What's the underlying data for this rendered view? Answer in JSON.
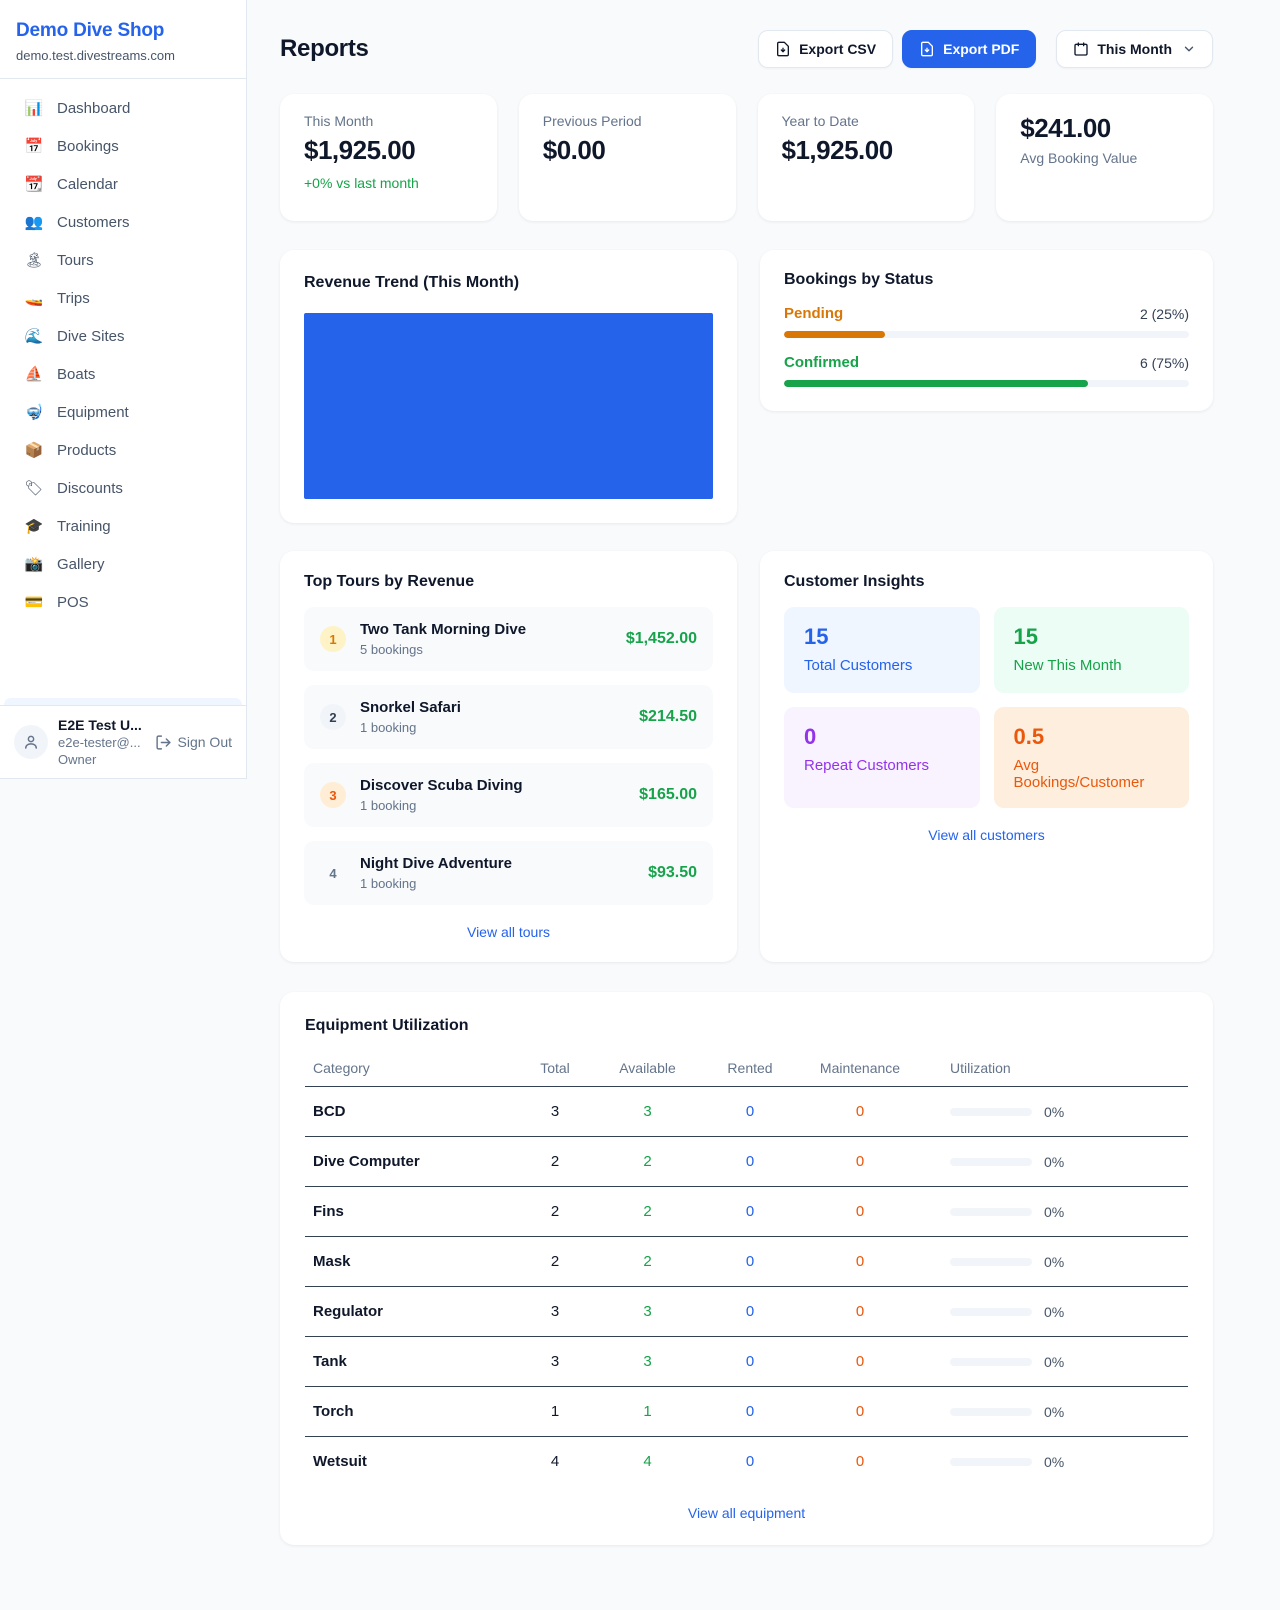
{
  "app": {
    "accent_color": "#2563eb",
    "page_bg": "#f8fafc"
  },
  "sidebar": {
    "shop_name": "Demo Dive Shop",
    "shop_domain": "demo.test.divestreams.com",
    "items": [
      {
        "nav_name": "sidebar-item-dashboard",
        "icon": "📊",
        "icon_name": "bar-chart-icon",
        "label": "Dashboard"
      },
      {
        "nav_name": "sidebar-item-bookings",
        "icon": "📅",
        "icon_name": "calendar-date-icon",
        "label": "Bookings"
      },
      {
        "nav_name": "sidebar-item-calendar",
        "icon": "📆",
        "icon_name": "tear-off-calendar-icon",
        "label": "Calendar"
      },
      {
        "nav_name": "sidebar-item-customers",
        "icon": "👥",
        "icon_name": "people-icon",
        "label": "Customers"
      },
      {
        "nav_name": "sidebar-item-tours",
        "icon": "🏝",
        "icon_name": "island-icon",
        "label": "Tours"
      },
      {
        "nav_name": "sidebar-item-trips",
        "icon": "🚤",
        "icon_name": "speedboat-icon",
        "label": "Trips"
      },
      {
        "nav_name": "sidebar-item-dive-sites",
        "icon": "🌊",
        "icon_name": "wave-icon",
        "label": "Dive Sites"
      },
      {
        "nav_name": "sidebar-item-boats",
        "icon": "⛵",
        "icon_name": "sailboat-icon",
        "label": "Boats"
      },
      {
        "nav_name": "sidebar-item-equipment",
        "icon": "🤿",
        "icon_name": "diving-mask-icon",
        "label": "Equipment"
      },
      {
        "nav_name": "sidebar-item-products",
        "icon": "📦",
        "icon_name": "package-icon",
        "label": "Products"
      },
      {
        "nav_name": "sidebar-item-discounts",
        "icon": "🏷",
        "icon_name": "tag-icon",
        "label": "Discounts"
      },
      {
        "nav_name": "sidebar-item-training",
        "icon": "🎓",
        "icon_name": "graduation-cap-icon",
        "label": "Training"
      },
      {
        "nav_name": "sidebar-item-gallery",
        "icon": "📸",
        "icon_name": "camera-icon",
        "label": "Gallery"
      },
      {
        "nav_name": "sidebar-item-pos",
        "icon": "💳",
        "icon_name": "credit-card-icon",
        "label": "POS"
      }
    ],
    "user": {
      "name": "E2E Test U...",
      "email": "e2e-tester@...",
      "role": "Owner",
      "sign_out_label": "Sign Out"
    }
  },
  "header": {
    "title": "Reports",
    "export_csv_label": "Export CSV",
    "export_pdf_label": "Export PDF",
    "period_label": "This Month"
  },
  "stats": [
    {
      "label": "This Month",
      "value": "$1,925.00",
      "delta": "+0% vs last month"
    },
    {
      "label": "Previous Period",
      "value": "$0.00"
    },
    {
      "label": "Year to Date",
      "value": "$1,925.00"
    },
    {
      "label": "Avg Booking Value",
      "value": "$241.00",
      "tone": "flip"
    }
  ],
  "revenue_trend": {
    "title": "Revenue Trend (This Month)",
    "fill_color": "#2563eb"
  },
  "bookings_by_status": {
    "title": "Bookings by Status",
    "rows": [
      {
        "label": "Pending",
        "count_label": "2 (25%)",
        "pct": 25,
        "tone": "amber",
        "color": "#d97706"
      },
      {
        "label": "Confirmed",
        "count_label": "6 (75%)",
        "pct": 75,
        "tone": "green",
        "color": "#16a34a"
      }
    ]
  },
  "top_tours": {
    "title": "Top Tours by Revenue",
    "view_all_label": "View all tours",
    "items": [
      {
        "rank": "1",
        "tone": "gold",
        "name": "Two Tank Morning Dive",
        "bookings_label": "5 bookings",
        "revenue": "$1,452.00"
      },
      {
        "rank": "2",
        "tone": "silver",
        "name": "Snorkel Safari",
        "bookings_label": "1 booking",
        "revenue": "$214.50"
      },
      {
        "rank": "3",
        "tone": "bronze",
        "name": "Discover Scuba Diving",
        "bookings_label": "1 booking",
        "revenue": "$165.00"
      },
      {
        "rank": "4",
        "tone": "none",
        "name": "Night Dive Adventure",
        "bookings_label": "1 booking",
        "revenue": "$93.50"
      }
    ]
  },
  "customer_insights": {
    "title": "Customer Insights",
    "view_all_label": "View all customers",
    "cells": [
      {
        "value": "15",
        "label": "Total Customers",
        "tone": "blue",
        "color": "#2563eb"
      },
      {
        "value": "15",
        "label": "New This Month",
        "tone": "green",
        "color": "#16a34a"
      },
      {
        "value": "0",
        "label": "Repeat Customers",
        "tone": "purple",
        "color": "#9333ea"
      },
      {
        "value": "0.5",
        "label": "Avg Bookings/Customer",
        "tone": "orange",
        "color": "#ea580c"
      }
    ]
  },
  "equipment": {
    "title": "Equipment Utilization",
    "view_all_label": "View all equipment",
    "columns": [
      "Category",
      "Total",
      "Available",
      "Rented",
      "Maintenance",
      "Utilization"
    ],
    "rows": [
      {
        "category": "BCD",
        "total": "3",
        "available": "3",
        "rented": "0",
        "maintenance": "0",
        "utilization_pct": 0,
        "utilization_label": "0%"
      },
      {
        "category": "Dive Computer",
        "total": "2",
        "available": "2",
        "rented": "0",
        "maintenance": "0",
        "utilization_pct": 0,
        "utilization_label": "0%"
      },
      {
        "category": "Fins",
        "total": "2",
        "available": "2",
        "rented": "0",
        "maintenance": "0",
        "utilization_pct": 0,
        "utilization_label": "0%"
      },
      {
        "category": "Mask",
        "total": "2",
        "available": "2",
        "rented": "0",
        "maintenance": "0",
        "utilization_pct": 0,
        "utilization_label": "0%"
      },
      {
        "category": "Regulator",
        "total": "3",
        "available": "3",
        "rented": "0",
        "maintenance": "0",
        "utilization_pct": 0,
        "utilization_label": "0%"
      },
      {
        "category": "Tank",
        "total": "3",
        "available": "3",
        "rented": "0",
        "maintenance": "0",
        "utilization_pct": 0,
        "utilization_label": "0%"
      },
      {
        "category": "Torch",
        "total": "1",
        "available": "1",
        "rented": "0",
        "maintenance": "0",
        "utilization_pct": 0,
        "utilization_label": "0%"
      },
      {
        "category": "Wetsuit",
        "total": "4",
        "available": "4",
        "rented": "0",
        "maintenance": "0",
        "utilization_pct": 0,
        "utilization_label": "0%"
      }
    ]
  }
}
